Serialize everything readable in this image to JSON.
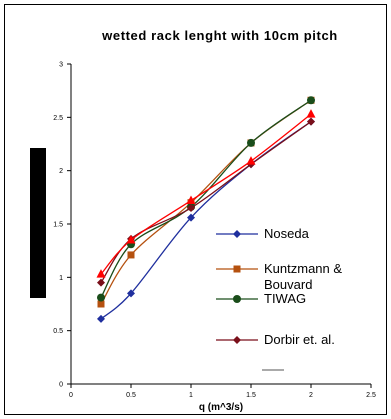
{
  "chart_data": {
    "type": "line",
    "title": "wetted rack lenght with 10cm pitch",
    "xlabel": "q (m^3/s)",
    "ylabel": "",
    "xlim": [
      0,
      2.5
    ],
    "ylim": [
      0,
      3
    ],
    "x_ticks": [
      "0",
      "0.5",
      "1",
      "1.5",
      "2",
      "2.5"
    ],
    "y_ticks": [
      "0",
      "0.5",
      "1",
      "1.5",
      "2",
      "2.5",
      "3"
    ],
    "grid": false,
    "legend_position": "right",
    "series": [
      {
        "name": "Noseda",
        "color": "#1f2f9e",
        "marker": "diamond",
        "x": [
          0.25,
          0.5,
          1.0,
          1.5,
          2.0
        ],
        "y": [
          0.61,
          0.85,
          1.56,
          2.06,
          2.46
        ]
      },
      {
        "name": "Kuntzmann & Bouvard",
        "color": "#b5510f",
        "marker": "square",
        "x": [
          0.25,
          0.5,
          1.0,
          1.5,
          2.0
        ],
        "y": [
          0.75,
          1.21,
          1.7,
          2.26,
          2.66
        ]
      },
      {
        "name": "TIWAG",
        "color": "#1a4d1a",
        "marker": "circle",
        "x": [
          0.25,
          0.5,
          1.0,
          1.5,
          2.0
        ],
        "y": [
          0.81,
          1.31,
          1.66,
          2.26,
          2.66
        ]
      },
      {
        "name": "Dorbir et. al.",
        "color": "#7a0f1a",
        "marker": "diamond",
        "x": [
          0.25,
          0.5,
          1.0,
          1.5,
          2.0
        ],
        "y": [
          0.95,
          1.36,
          1.65,
          2.06,
          2.46
        ]
      },
      {
        "name": "",
        "color": "#ff0000",
        "marker": "triangle",
        "x": [
          0.25,
          0.5,
          1.0,
          1.5,
          2.0
        ],
        "y": [
          1.03,
          1.35,
          1.72,
          2.09,
          2.53
        ]
      }
    ]
  }
}
